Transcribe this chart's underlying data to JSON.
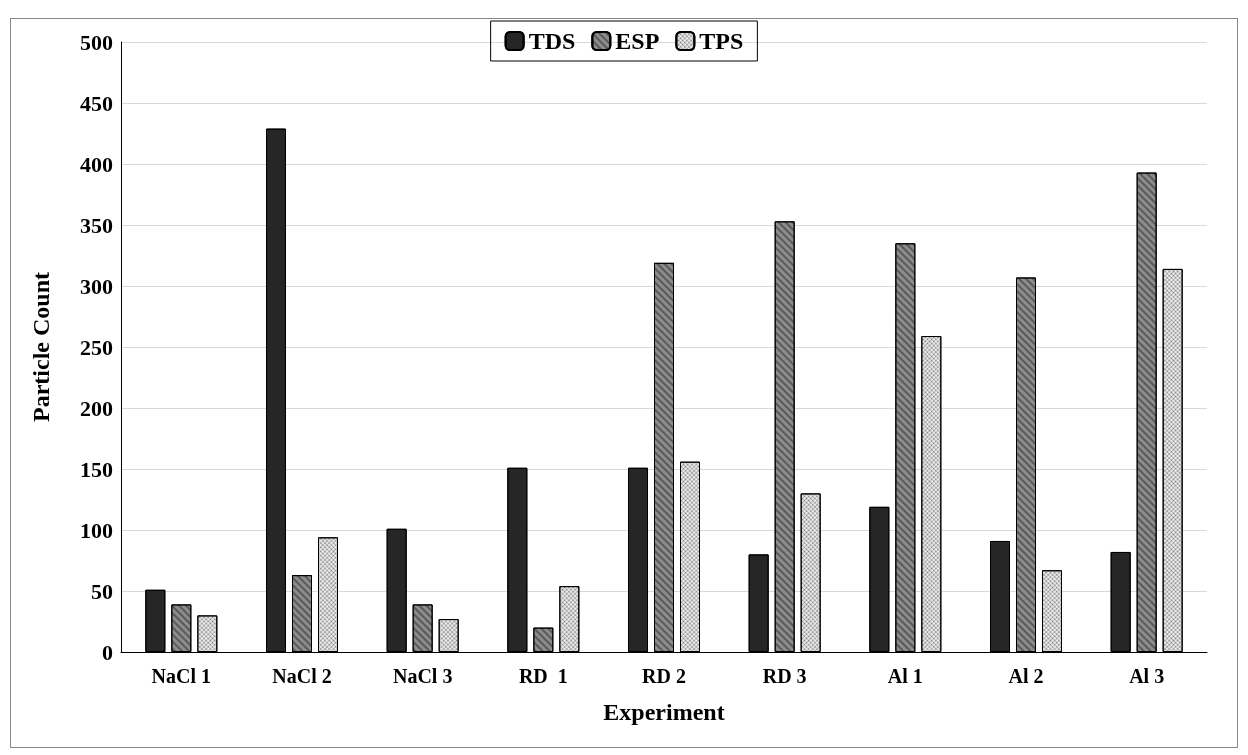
{
  "chart_data": {
    "type": "bar",
    "xlabel": "Experiment",
    "ylabel": "Particle Count",
    "categories": [
      "NaCl 1",
      "NaCl 2",
      "NaCl 3",
      "RD  1",
      "RD 2",
      "RD 3",
      "Al 1",
      "Al 2",
      "Al 3"
    ],
    "series": [
      {
        "name": "TDS",
        "color": "#262626",
        "values": [
          51,
          429,
          101,
          151,
          151,
          80,
          119,
          91,
          82
        ]
      },
      {
        "name": "ESP",
        "color": "#8c8c8c",
        "values": [
          39,
          63,
          39,
          20,
          319,
          353,
          335,
          307,
          393
        ]
      },
      {
        "name": "TPS",
        "color": "#f0f0f0",
        "values": [
          30,
          94,
          27,
          54,
          156,
          130,
          259,
          67,
          314
        ]
      }
    ],
    "ylim": [
      0,
      500
    ],
    "yticks": [
      0,
      50,
      100,
      150,
      200,
      250,
      300,
      350,
      400,
      450,
      500
    ],
    "grid": "y",
    "legend": "top"
  }
}
